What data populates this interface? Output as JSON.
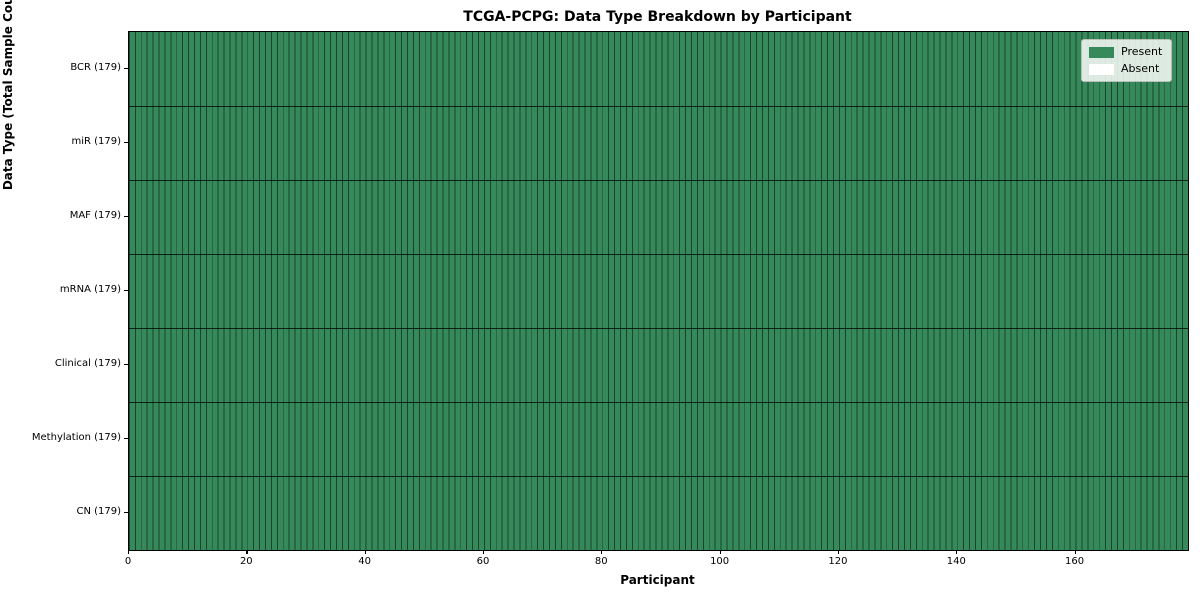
{
  "title": "TCGA-PCPG: Data Type Breakdown by Participant",
  "axes": {
    "x_label": "Participant",
    "y_label": "Data Type (Total Sample Count)"
  },
  "legend": {
    "items": [
      {
        "label": "Present",
        "color": "#35895a"
      },
      {
        "label": "Absent",
        "color": "#ffffff"
      }
    ]
  },
  "colors": {
    "present": "#35895a",
    "absent": "#ffffff",
    "cell_edge": "rgba(0,0,0,0.5)",
    "row_divider": "rgba(0,0,0,0.75)",
    "spine": "#000000",
    "background": "#ffffff"
  },
  "chart_data": {
    "type": "heatmap",
    "title": "TCGA-PCPG: Data Type Breakdown by Participant",
    "xlabel": "Participant",
    "ylabel": "Data Type (Total Sample Count)",
    "n_participants": 179,
    "xlim": [
      0,
      179
    ],
    "x_ticks": [
      0,
      20,
      40,
      60,
      80,
      100,
      120,
      140,
      160
    ],
    "legend_entries": [
      "Present",
      "Absent"
    ],
    "legend_position": "upper right",
    "grid": "per-cell edges drawn; one column per participant",
    "rows": [
      {
        "label": "BCR (179)",
        "data_type": "BCR",
        "total_sample_count": 179,
        "present_count": 179,
        "absent_count": 0,
        "absent_indices": []
      },
      {
        "label": "miR (179)",
        "data_type": "miR",
        "total_sample_count": 179,
        "present_count": 179,
        "absent_count": 0,
        "absent_indices": []
      },
      {
        "label": "MAF (179)",
        "data_type": "MAF",
        "total_sample_count": 179,
        "present_count": 179,
        "absent_count": 0,
        "absent_indices": []
      },
      {
        "label": "mRNA (179)",
        "data_type": "mRNA",
        "total_sample_count": 179,
        "present_count": 179,
        "absent_count": 0,
        "absent_indices": []
      },
      {
        "label": "Clinical (179)",
        "data_type": "Clinical",
        "total_sample_count": 179,
        "present_count": 179,
        "absent_count": 0,
        "absent_indices": []
      },
      {
        "label": "Methylation (179)",
        "data_type": "Methylation",
        "total_sample_count": 179,
        "present_count": 179,
        "absent_count": 0,
        "absent_indices": []
      },
      {
        "label": "CN (179)",
        "data_type": "CN",
        "total_sample_count": 179,
        "present_count": 179,
        "absent_count": 0,
        "absent_indices": []
      }
    ]
  }
}
